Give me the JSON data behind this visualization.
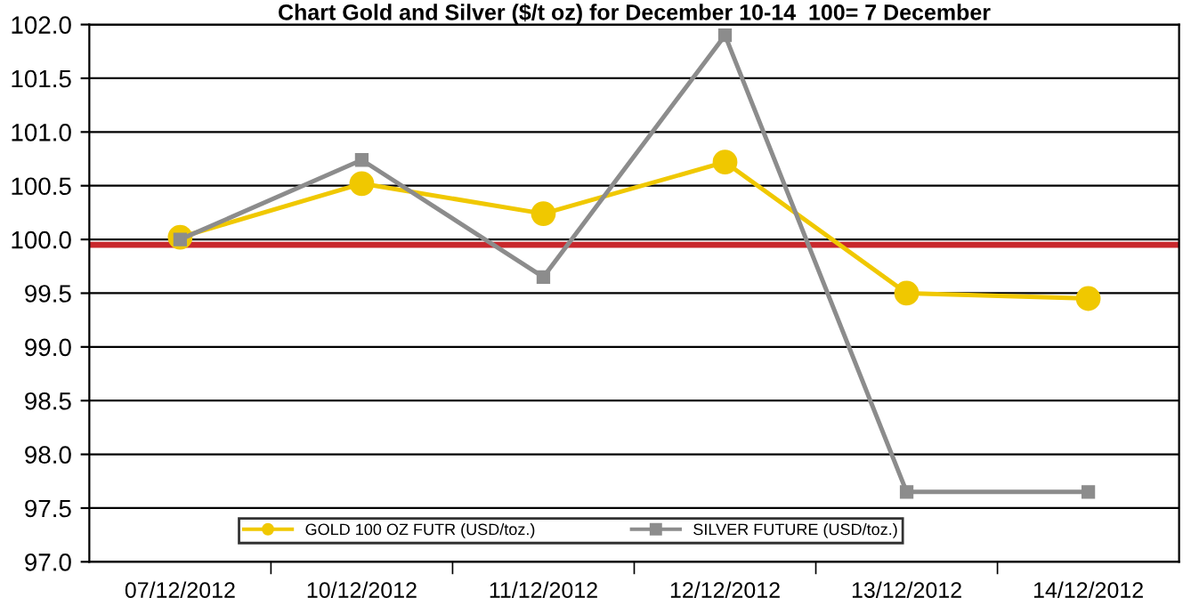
{
  "chart_data": {
    "type": "line",
    "title": "Chart Gold and Silver ($/t oz) for December 10-14  100= 7 December",
    "categories": [
      "07/12/2012",
      "10/12/2012",
      "11/12/2012",
      "12/12/2012",
      "13/12/2012",
      "14/12/2012"
    ],
    "series": [
      {
        "name": "GOLD 100 OZ FUTR (USD/toz.)",
        "color": "#f0c800",
        "marker": "circle",
        "values": [
          100.02,
          100.52,
          100.24,
          100.72,
          99.5,
          99.45
        ]
      },
      {
        "name": "SILVER FUTURE (USD/toz.)",
        "color": "#8c8c8c",
        "marker": "square",
        "values": [
          100.0,
          100.74,
          99.65,
          101.9,
          97.65,
          97.65
        ]
      }
    ],
    "ylim": [
      97.0,
      102.0
    ],
    "yticks": [
      {
        "value": 97.0,
        "label": "97.0"
      },
      {
        "value": 97.5,
        "label": "97.5"
      },
      {
        "value": 98.0,
        "label": "98.0"
      },
      {
        "value": 98.5,
        "label": "98.5"
      },
      {
        "value": 99.0,
        "label": "99.0"
      },
      {
        "value": 99.5,
        "label": "99.5"
      },
      {
        "value": 100.0,
        "label": "100.0"
      },
      {
        "value": 100.5,
        "label": "100.5"
      },
      {
        "value": 101.0,
        "label": "101.0"
      },
      {
        "value": 101.5,
        "label": "101.5"
      },
      {
        "value": 102.0,
        "label": "102.0"
      }
    ],
    "ref_lines": [
      {
        "axis": "y",
        "value": 99.95,
        "color": "#c8282d"
      }
    ],
    "grid": "y",
    "legend": "bottom",
    "line_style": "solid"
  }
}
